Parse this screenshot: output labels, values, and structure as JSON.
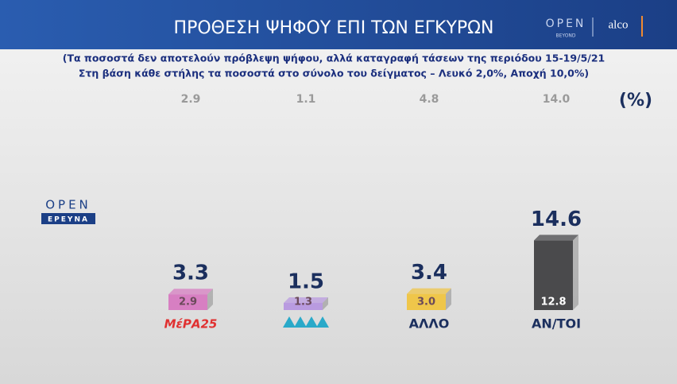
{
  "chart_data": {
    "type": "bar",
    "title": "ΠΡΟΘΕΣΗ ΨΗΦΟΥ ΕΠΙ ΤΩΝ ΕΓΚΥΡΩΝ",
    "subtitle": [
      "(Τα ποσοστά δεν αποτελούν πρόβλεψη ψήφου, αλλά καταγραφή τάσεων της περιόδου 15-19/5/21",
      "Στη βάση κάθε στήλης τα ποσοστά στο σύνολο του δείγματος – Λευκό 2,0%, Αποχή 10,0%)"
    ],
    "unit_label": "(%)",
    "categories": [
      "ΜέΡΑ25",
      null,
      "ΑΛΛΟ",
      "ΑΝ/ΤΟΙ"
    ],
    "values": [
      3.3,
      1.5,
      3.4,
      14.6
    ],
    "colors": [
      "#d77fc2",
      "#b99be0",
      "#efc64a",
      "#4a4a4c"
    ],
    "sample_values": [
      2.9,
      1.3,
      3.0,
      12.8
    ],
    "sample_value_labels": [
      "2.9",
      "1.3",
      "3.0",
      "12.8"
    ],
    "previous_values": [
      2.9,
      1.1,
      4.8,
      14.0
    ],
    "previous_value_labels": [
      "2.9",
      "1.1",
      "4.8",
      "14.0"
    ]
  },
  "branding": {
    "channel": "OPEN",
    "channel_sub": "BEYOND",
    "pollster": "alco",
    "section": "ΕΡΕΥΝΑ"
  }
}
